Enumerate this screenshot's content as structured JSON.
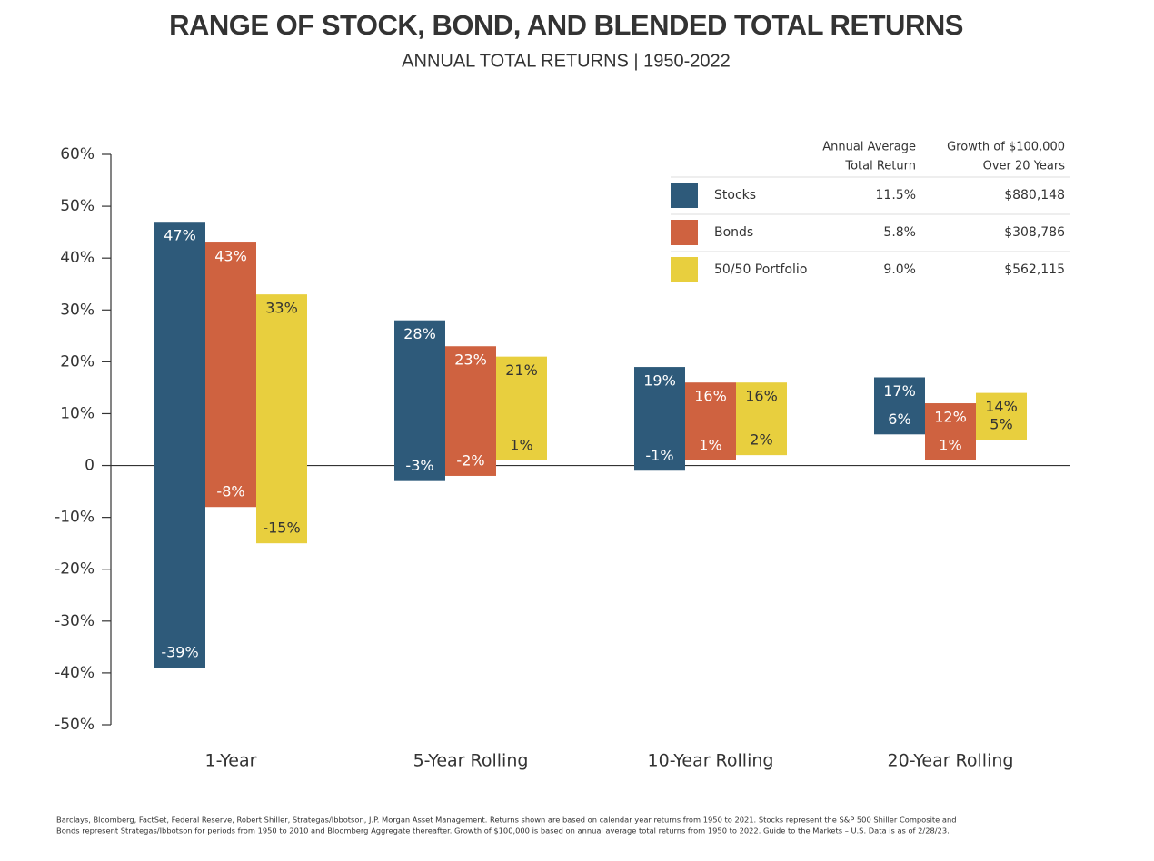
{
  "chart_data": {
    "type": "range_bar",
    "title": "RANGE OF STOCK, BOND, AND BLENDED TOTAL RETURNS",
    "subtitle": "ANNUAL TOTAL RETURNS | 1950-2022",
    "categories": [
      "1-Year",
      "5-Year Rolling",
      "10-Year Rolling",
      "20-Year Rolling"
    ],
    "series": [
      {
        "name": "Stocks",
        "color": "#2e5a7a",
        "label_color": "#ffffff",
        "high": [
          47,
          28,
          19,
          17
        ],
        "low": [
          -39,
          -3,
          -1,
          6
        ],
        "high_labels": [
          "47%",
          "28%",
          "19%",
          "17%"
        ],
        "low_labels": [
          "-39%",
          "-3%",
          "-1%",
          "6%"
        ]
      },
      {
        "name": "Bonds",
        "color": "#cf6240",
        "label_color": "#ffffff",
        "high": [
          43,
          23,
          16,
          12
        ],
        "low": [
          -8,
          -2,
          1,
          1
        ],
        "high_labels": [
          "43%",
          "23%",
          "16%",
          "12%"
        ],
        "low_labels": [
          "-8%",
          "-2%",
          "1%",
          "1%"
        ]
      },
      {
        "name": "50/50 Portfolio",
        "color": "#e8cf3e",
        "label_color": "#333333",
        "high": [
          33,
          21,
          16,
          14
        ],
        "low": [
          -15,
          1,
          2,
          5
        ],
        "high_labels": [
          "33%",
          "21%",
          "16%",
          "14%"
        ],
        "low_labels": [
          "-15%",
          "1%",
          "2%",
          "5%"
        ]
      }
    ],
    "ylim": [
      -50,
      60
    ],
    "yticks": [
      {
        "value": -50,
        "label": "-50%"
      },
      {
        "value": -40,
        "label": "-40%"
      },
      {
        "value": -30,
        "label": "-30%"
      },
      {
        "value": -20,
        "label": "-20%"
      },
      {
        "value": -10,
        "label": "-10%"
      },
      0,
      {
        "value": 10,
        "label": "10%"
      },
      {
        "value": 20,
        "label": "20%"
      },
      {
        "value": 30,
        "label": "30%"
      },
      {
        "value": 40,
        "label": "40%"
      },
      {
        "value": 50,
        "label": "50%"
      },
      {
        "value": 60,
        "label": "60%"
      }
    ],
    "table": {
      "columns": [
        [
          "Annual Average",
          "Total Return"
        ],
        [
          "Growth of $100,000",
          "Over 20 Years"
        ]
      ],
      "rows": [
        [
          "11.5%",
          "$880,148"
        ],
        [
          "5.8%",
          "$308,786"
        ],
        [
          "9.0%",
          "$562,115"
        ]
      ]
    },
    "footnote": [
      "Barclays, Bloomberg, FactSet, Federal Reserve, Robert Shiller, Strategas/Ibbotson, J.P. Morgan Asset Management. Returns shown are based on calendar year returns from 1950 to 2021. Stocks represent the S&P 500 Shiller Composite and",
      "Bonds represent Strategas/Ibbotson for periods from 1950 to 2010 and Bloomberg Aggregate thereafter. Growth of $100,000 is based on annual average total returns from 1950 to 2022. Guide to the Markets – U.S. Data is as of 2/28/23."
    ]
  }
}
